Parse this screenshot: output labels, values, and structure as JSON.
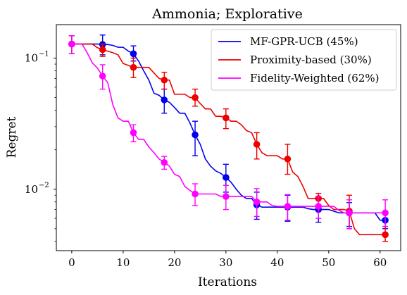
{
  "chart_data": {
    "type": "line",
    "title": "Ammonia; Explorative",
    "xlabel": "Iterations",
    "ylabel": "Regret",
    "xlim": [
      -3,
      64
    ],
    "ylim": [
      0.0034,
      0.18
    ],
    "yscale": "log",
    "xticks": [
      0,
      10,
      20,
      30,
      40,
      50,
      60
    ],
    "yticks": [
      {
        "value": 0.1,
        "label": "10",
        "exponent": "−1"
      },
      {
        "value": 0.01,
        "label": "10",
        "exponent": "−2"
      }
    ],
    "grid": false,
    "legend_position": "top-right",
    "series": [
      {
        "name": "MF-GPR-UCB (45%)",
        "color": "#0000ee",
        "x": [
          0,
          1,
          2,
          3,
          4,
          5,
          6,
          7,
          8,
          9,
          10,
          11,
          12,
          13,
          14,
          15,
          16,
          17,
          18,
          19,
          20,
          21,
          22,
          23,
          24,
          25,
          26,
          27,
          28,
          29,
          30,
          31,
          32,
          33,
          34,
          35,
          36,
          37,
          38,
          39,
          40,
          41,
          42,
          43,
          44,
          45,
          46,
          47,
          48,
          49,
          50,
          51,
          52,
          53,
          54,
          55,
          56,
          57,
          58,
          59,
          60,
          61
        ],
        "y": [
          0.128,
          0.128,
          0.128,
          0.128,
          0.128,
          0.128,
          0.127,
          0.127,
          0.125,
          0.121,
          0.121,
          0.113,
          0.108,
          0.095,
          0.08,
          0.068,
          0.054,
          0.052,
          0.048,
          0.046,
          0.042,
          0.038,
          0.038,
          0.032,
          0.026,
          0.022,
          0.017,
          0.015,
          0.0138,
          0.0132,
          0.0123,
          0.0113,
          0.01,
          0.009,
          0.0085,
          0.0085,
          0.0076,
          0.0073,
          0.0073,
          0.0073,
          0.0073,
          0.0073,
          0.0073,
          0.0073,
          0.0073,
          0.0073,
          0.0071,
          0.007,
          0.007,
          0.007,
          0.007,
          0.0068,
          0.0066,
          0.0066,
          0.0066,
          0.0066,
          0.0066,
          0.0066,
          0.0066,
          0.0066,
          0.0058,
          0.0058
        ],
        "markers": [
          {
            "x": 0,
            "y": 0.128,
            "err_low": 0.108,
            "err_high": 0.148
          },
          {
            "x": 6,
            "y": 0.127,
            "err_low": 0.106,
            "err_high": 0.15
          },
          {
            "x": 12,
            "y": 0.108,
            "err_low": 0.095,
            "err_high": 0.124
          },
          {
            "x": 18,
            "y": 0.048,
            "err_low": 0.038,
            "err_high": 0.058
          },
          {
            "x": 24,
            "y": 0.026,
            "err_low": 0.018,
            "err_high": 0.033
          },
          {
            "x": 30,
            "y": 0.0123,
            "err_low": 0.0095,
            "err_high": 0.0155
          },
          {
            "x": 36,
            "y": 0.0076,
            "err_low": 0.0059,
            "err_high": 0.0095
          },
          {
            "x": 42,
            "y": 0.0073,
            "err_low": 0.0057,
            "err_high": 0.009
          },
          {
            "x": 48,
            "y": 0.007,
            "err_low": 0.0056,
            "err_high": 0.0084
          },
          {
            "x": 54,
            "y": 0.0066,
            "err_low": 0.0052,
            "err_high": 0.0079
          },
          {
            "x": 61,
            "y": 0.0058,
            "err_low": 0.005,
            "err_high": 0.0066
          }
        ]
      },
      {
        "name": "Proximity-based (30%)",
        "color": "#ee0000",
        "x": [
          0,
          1,
          2,
          3,
          4,
          5,
          6,
          7,
          8,
          9,
          10,
          11,
          12,
          13,
          14,
          15,
          16,
          17,
          18,
          19,
          20,
          21,
          22,
          23,
          24,
          25,
          26,
          27,
          28,
          29,
          30,
          31,
          32,
          33,
          34,
          35,
          36,
          37,
          38,
          39,
          40,
          41,
          42,
          43,
          44,
          45,
          46,
          47,
          48,
          49,
          50,
          51,
          52,
          53,
          54,
          55,
          56,
          57,
          58,
          59,
          60,
          61
        ],
        "y": [
          0.128,
          0.128,
          0.128,
          0.128,
          0.128,
          0.12,
          0.116,
          0.113,
          0.11,
          0.106,
          0.091,
          0.088,
          0.085,
          0.085,
          0.085,
          0.085,
          0.077,
          0.07,
          0.068,
          0.068,
          0.053,
          0.053,
          0.053,
          0.05,
          0.05,
          0.045,
          0.041,
          0.041,
          0.036,
          0.036,
          0.035,
          0.033,
          0.033,
          0.031,
          0.028,
          0.027,
          0.022,
          0.019,
          0.018,
          0.018,
          0.018,
          0.017,
          0.017,
          0.0135,
          0.0125,
          0.0105,
          0.0085,
          0.0085,
          0.0085,
          0.0085,
          0.0075,
          0.007,
          0.007,
          0.007,
          0.0068,
          0.005,
          0.0045,
          0.0045,
          0.0045,
          0.0045,
          0.0045,
          0.0045
        ],
        "markers": [
          {
            "x": 0,
            "y": 0.128,
            "err_low": 0.108,
            "err_high": 0.148
          },
          {
            "x": 6,
            "y": 0.116,
            "err_low": 0.103,
            "err_high": 0.128
          },
          {
            "x": 12,
            "y": 0.085,
            "err_low": 0.071,
            "err_high": 0.1
          },
          {
            "x": 18,
            "y": 0.068,
            "err_low": 0.058,
            "err_high": 0.078
          },
          {
            "x": 24,
            "y": 0.05,
            "err_low": 0.043,
            "err_high": 0.058
          },
          {
            "x": 30,
            "y": 0.035,
            "err_low": 0.029,
            "err_high": 0.041
          },
          {
            "x": 36,
            "y": 0.022,
            "err_low": 0.017,
            "err_high": 0.027
          },
          {
            "x": 42,
            "y": 0.017,
            "err_low": 0.013,
            "err_high": 0.022
          },
          {
            "x": 48,
            "y": 0.0085,
            "err_low": 0.0076,
            "err_high": 0.0093
          },
          {
            "x": 54,
            "y": 0.0068,
            "err_low": 0.005,
            "err_high": 0.009
          },
          {
            "x": 61,
            "y": 0.0045,
            "err_low": 0.004,
            "err_high": 0.0052
          }
        ]
      },
      {
        "name": "Fidelity-Weighted (62%)",
        "color": "#ff00ff",
        "x": [
          0,
          1,
          2,
          3,
          4,
          5,
          6,
          7,
          8,
          9,
          10,
          11,
          12,
          13,
          14,
          15,
          16,
          17,
          18,
          19,
          20,
          21,
          22,
          23,
          24,
          25,
          26,
          27,
          28,
          29,
          30,
          31,
          32,
          33,
          34,
          35,
          36,
          37,
          38,
          39,
          40,
          41,
          42,
          43,
          44,
          45,
          46,
          47,
          48,
          49,
          50,
          51,
          52,
          53,
          54,
          55,
          56,
          57,
          58,
          59,
          60,
          61
        ],
        "y": [
          0.128,
          0.128,
          0.128,
          0.11,
          0.092,
          0.084,
          0.073,
          0.065,
          0.044,
          0.035,
          0.033,
          0.033,
          0.027,
          0.024,
          0.024,
          0.021,
          0.019,
          0.017,
          0.016,
          0.015,
          0.013,
          0.0125,
          0.0105,
          0.0098,
          0.0092,
          0.0092,
          0.0092,
          0.0092,
          0.0092,
          0.0088,
          0.0088,
          0.0088,
          0.0088,
          0.0088,
          0.0088,
          0.0088,
          0.008,
          0.008,
          0.008,
          0.0075,
          0.0074,
          0.0074,
          0.0074,
          0.0074,
          0.0074,
          0.0074,
          0.0074,
          0.0074,
          0.0074,
          0.0074,
          0.0074,
          0.0074,
          0.0069,
          0.0066,
          0.0066,
          0.0066,
          0.0066,
          0.0066,
          0.0066,
          0.0066,
          0.0066,
          0.0066
        ],
        "markers": [
          {
            "x": 0,
            "y": 0.128,
            "err_low": 0.108,
            "err_high": 0.148
          },
          {
            "x": 6,
            "y": 0.073,
            "err_low": 0.058,
            "err_high": 0.089
          },
          {
            "x": 12,
            "y": 0.027,
            "err_low": 0.023,
            "err_high": 0.031
          },
          {
            "x": 18,
            "y": 0.016,
            "err_low": 0.0142,
            "err_high": 0.0178
          },
          {
            "x": 24,
            "y": 0.0092,
            "err_low": 0.0075,
            "err_high": 0.011
          },
          {
            "x": 30,
            "y": 0.0088,
            "err_low": 0.007,
            "err_high": 0.0107
          },
          {
            "x": 36,
            "y": 0.008,
            "err_low": 0.0062,
            "err_high": 0.0101
          },
          {
            "x": 42,
            "y": 0.0074,
            "err_low": 0.0058,
            "err_high": 0.0091
          },
          {
            "x": 48,
            "y": 0.0074,
            "err_low": 0.006,
            "err_high": 0.0088
          },
          {
            "x": 54,
            "y": 0.0066,
            "err_low": 0.005,
            "err_high": 0.0083
          },
          {
            "x": 61,
            "y": 0.0066,
            "err_low": 0.0052,
            "err_high": 0.0083
          }
        ]
      }
    ]
  }
}
